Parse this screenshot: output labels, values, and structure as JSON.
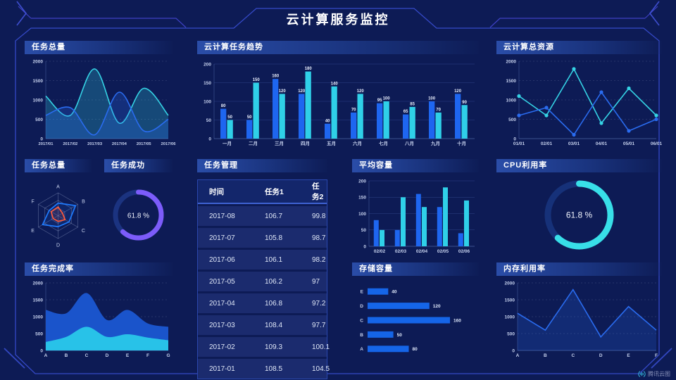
{
  "page": {
    "title": "云计算服务监控",
    "bg": "#0d1b55",
    "logo": "腾讯云图"
  },
  "panels": {
    "task_total_line": {
      "title": "任务总量"
    },
    "cloud_task_trend": {
      "title": "云计算任务趋势"
    },
    "cloud_total_resources": {
      "title": "云计算总资源"
    },
    "task_total_radar": {
      "title": "任务总量"
    },
    "task_success": {
      "title": "任务成功"
    },
    "task_manage": {
      "title": "任务管理"
    },
    "avg_capacity": {
      "title": "平均容量"
    },
    "cpu_usage": {
      "title": "CPU利用率"
    },
    "task_completion": {
      "title": "任务完成率"
    },
    "storage": {
      "title": "存储容量"
    },
    "memory": {
      "title": "内存利用率"
    }
  },
  "table": {
    "headers": [
      "时间",
      "任务1",
      "任务2"
    ],
    "rows": [
      [
        "2017-08",
        "106.7",
        "99.8"
      ],
      [
        "2017-07",
        "105.8",
        "98.7"
      ],
      [
        "2017-06",
        "106.1",
        "98.2"
      ],
      [
        "2017-05",
        "106.2",
        "97"
      ],
      [
        "2017-04",
        "106.8",
        "97.2"
      ],
      [
        "2017-03",
        "108.4",
        "97.7"
      ],
      [
        "2017-02",
        "109.3",
        "100.1"
      ],
      [
        "2017-01",
        "108.5",
        "104.5"
      ]
    ]
  },
  "chart_data": [
    {
      "id": "task_total_line",
      "type": "area",
      "smooth": true,
      "area": true,
      "area_opacity": 0.25,
      "title": "任务总量",
      "grid": "dashed",
      "categories": [
        "2017/01",
        "2017/02",
        "2017/03",
        "2017/04",
        "2017/05",
        "2017/06"
      ],
      "series": [
        {
          "name": "cyan",
          "color": "#35d3e5",
          "values": [
            1100,
            600,
            1800,
            400,
            1300,
            600
          ]
        },
        {
          "name": "blue",
          "color": "#2a6cf0",
          "values": [
            600,
            800,
            100,
            1200,
            200,
            500
          ]
        }
      ],
      "ylim": [
        0,
        2000
      ],
      "yticks": [
        0,
        500,
        1000,
        1500,
        2000
      ]
    },
    {
      "id": "cloud_task_trend",
      "type": "bar",
      "value_labels": true,
      "title": "云计算任务趋势",
      "grid": "solid",
      "categories": [
        "一月",
        "二月",
        "三月",
        "四月",
        "五月",
        "六月",
        "七月",
        "八月",
        "九月",
        "十月"
      ],
      "series": [
        {
          "name": "blue",
          "color": "#1e66f0",
          "values": [
            80,
            50,
            160,
            120,
            40,
            70,
            95,
            65,
            100,
            120
          ]
        },
        {
          "name": "cyan",
          "color": "#2fd0e8",
          "values": [
            50,
            150,
            120,
            180,
            140,
            120,
            100,
            85,
            70,
            90
          ]
        }
      ],
      "ylim": [
        0,
        200
      ],
      "yticks": [
        0,
        50,
        100,
        150,
        200
      ]
    },
    {
      "id": "cloud_total_resources",
      "type": "line",
      "smooth": false,
      "markers": true,
      "title": "云计算总资源",
      "grid": "dashed",
      "categories": [
        "01/01",
        "02/01",
        "03/01",
        "04/01",
        "05/01",
        "06/01"
      ],
      "series": [
        {
          "name": "cyan",
          "color": "#35d3e5",
          "values": [
            1100,
            600,
            1800,
            400,
            1300,
            600
          ]
        },
        {
          "name": "blue",
          "color": "#2a6cf0",
          "values": [
            600,
            800,
            100,
            1200,
            200,
            500
          ]
        }
      ],
      "ylim": [
        0,
        2000
      ],
      "yticks": [
        0,
        500,
        1000,
        1500,
        2000
      ]
    },
    {
      "id": "task_total_radar",
      "type": "radar",
      "title": "任务总量",
      "indicators": [
        "A",
        "B",
        "C",
        "D",
        "E",
        "F"
      ],
      "max": 100,
      "series": [
        {
          "name": "blue",
          "color": "#1f7bff",
          "values": [
            55,
            88,
            55,
            48,
            78,
            45
          ]
        },
        {
          "name": "orange",
          "color": "#ff5a3c",
          "values": [
            38,
            22,
            35,
            25,
            25,
            35
          ]
        }
      ]
    },
    {
      "id": "task_success",
      "type": "gauge",
      "title": "任务成功",
      "value": 61.8,
      "label": "61.8 %",
      "color": "#7c5cfa",
      "track": "#1b3380"
    },
    {
      "id": "avg_capacity",
      "type": "bar",
      "value_labels": false,
      "title": "平均容量",
      "grid": "solid",
      "categories": [
        "02/02",
        "02/03",
        "02/04",
        "02/05",
        "02/06"
      ],
      "series": [
        {
          "name": "blue",
          "color": "#1e66f0",
          "values": [
            80,
            50,
            160,
            120,
            40
          ]
        },
        {
          "name": "cyan",
          "color": "#2fd0e8",
          "values": [
            50,
            150,
            120,
            180,
            140
          ]
        }
      ],
      "ylim": [
        0,
        200
      ],
      "yticks": [
        0,
        50,
        100,
        150,
        200
      ]
    },
    {
      "id": "cpu_usage",
      "type": "gauge",
      "title": "CPU利用率",
      "value": 61.8,
      "label": "61.8 %",
      "color": "#38dfe8",
      "track": "#163179"
    },
    {
      "id": "task_completion",
      "type": "stacked-area",
      "title": "任务完成率",
      "grid": "dashed",
      "categories": [
        "A",
        "B",
        "C",
        "D",
        "E",
        "F",
        "G"
      ],
      "series": [
        {
          "name": "cyan-bottom",
          "color": "#29c6e8",
          "values": [
            250,
            400,
            700,
            400,
            480,
            380,
            300
          ]
        },
        {
          "name": "blue-envelope",
          "color": "#1b57cf",
          "values": [
            1200,
            1100,
            1700,
            900,
            1200,
            800,
            700
          ]
        }
      ],
      "ylim": [
        0,
        2000
      ],
      "yticks": [
        0,
        500,
        1000,
        1500,
        2000
      ]
    },
    {
      "id": "storage",
      "type": "hbar",
      "title": "存储容量",
      "color": "#1565e8",
      "xmax": 175,
      "categories": [
        "E",
        "D",
        "C",
        "B",
        "A"
      ],
      "values": [
        40,
        120,
        160,
        50,
        80
      ]
    },
    {
      "id": "memory",
      "type": "line",
      "smooth": false,
      "markers": false,
      "area": true,
      "area_opacity": 0.2,
      "title": "内存利用率",
      "grid": "dashed",
      "categories": [
        "A",
        "B",
        "C",
        "D",
        "E",
        "F"
      ],
      "series": [
        {
          "name": "blue",
          "color": "#2a6cf0",
          "values": [
            1100,
            600,
            1800,
            400,
            1300,
            600
          ]
        }
      ],
      "ylim": [
        0,
        2000
      ],
      "yticks": [
        0,
        500,
        1000,
        1500,
        2000
      ]
    }
  ]
}
